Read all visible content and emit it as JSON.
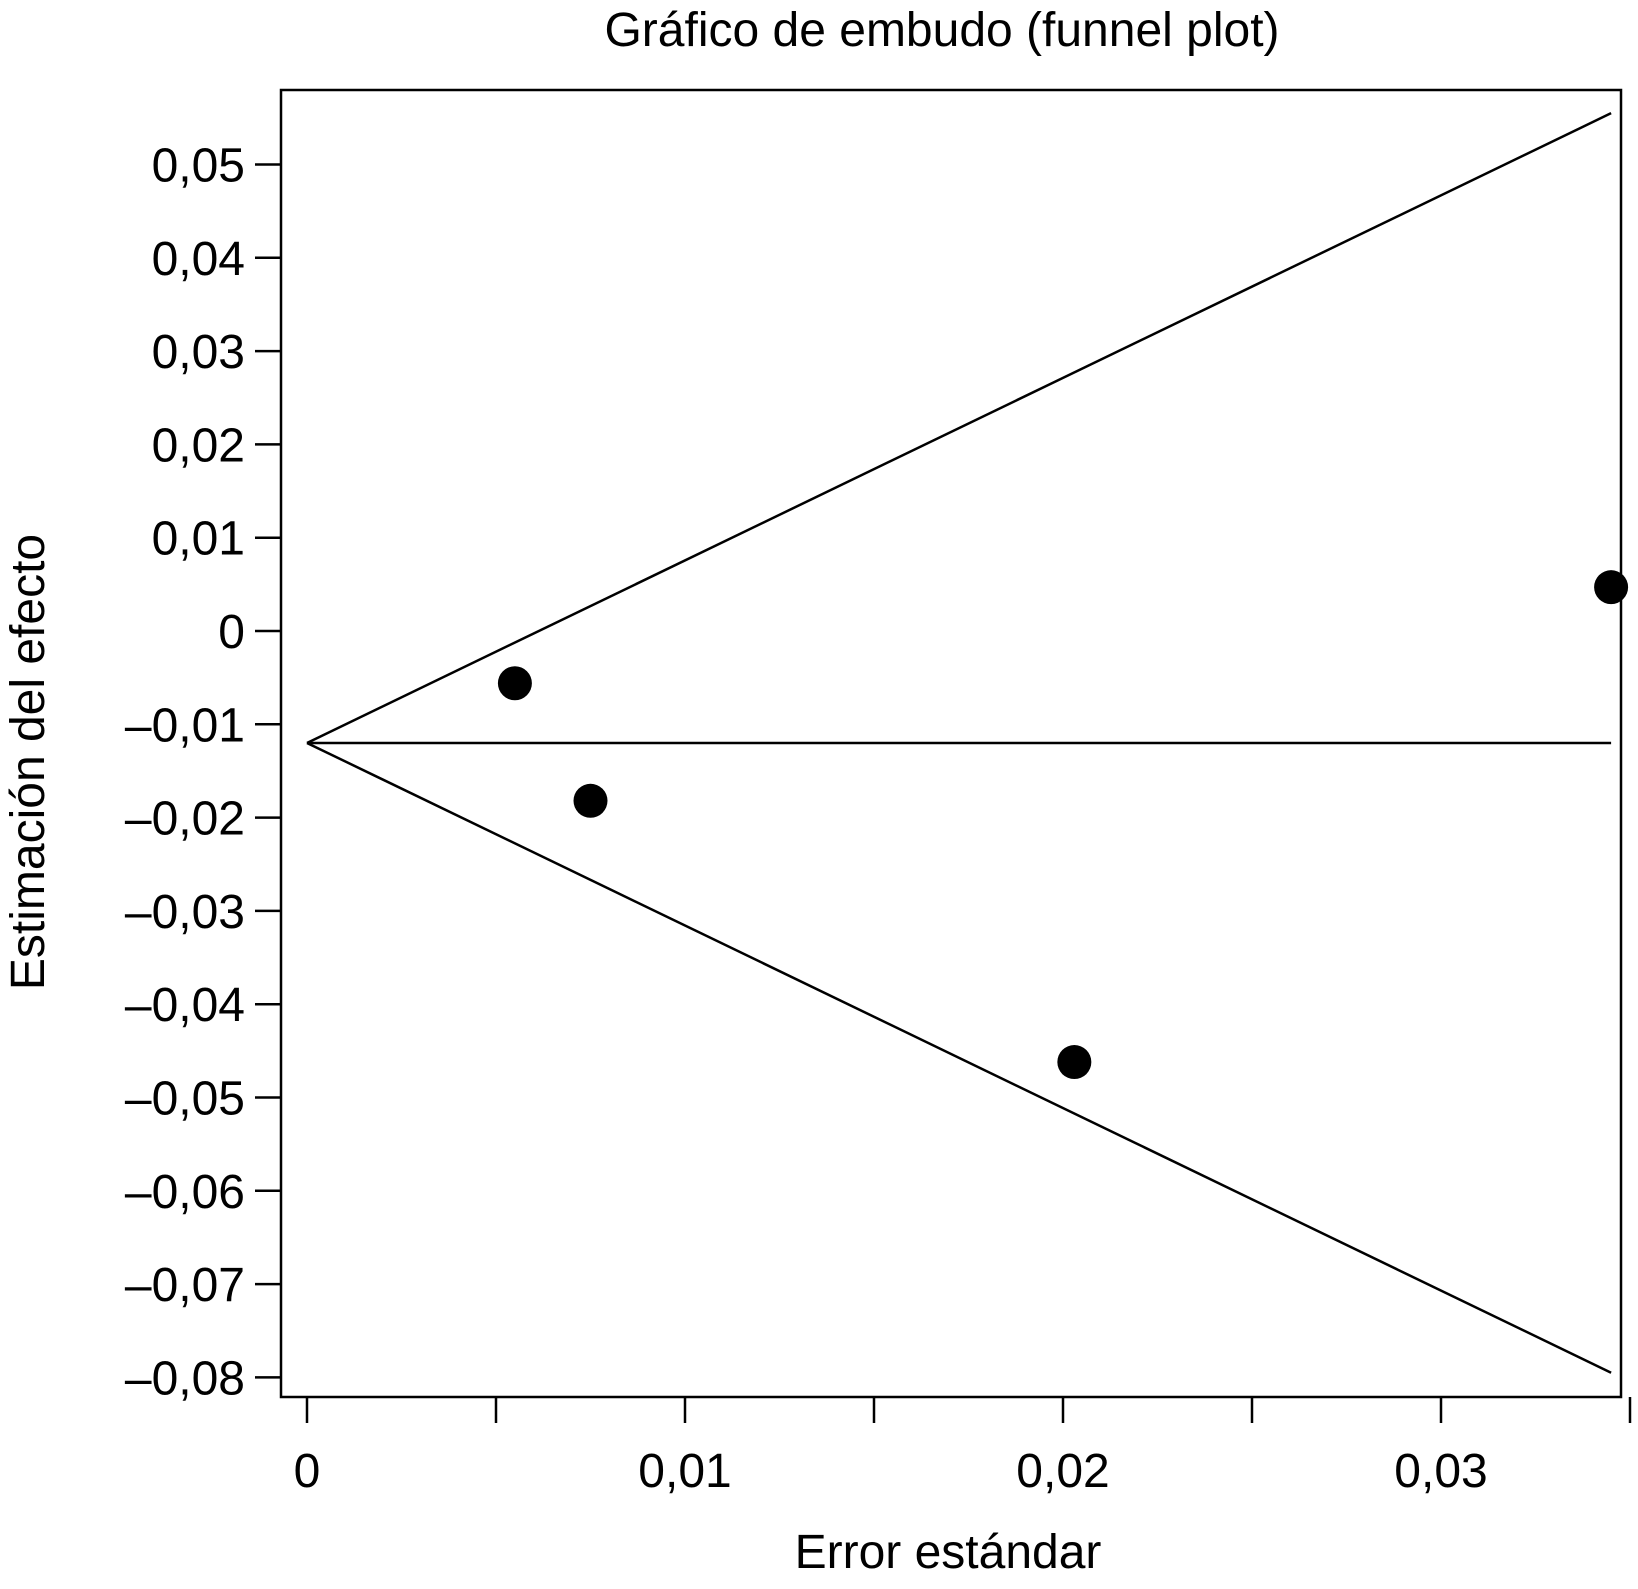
{
  "chart_data": {
    "type": "scatter",
    "title": "Gráfico de embudo (funnel plot)",
    "xlabel": "Error estándar",
    "ylabel": "Estimación del efecto",
    "xlim": [
      0,
      0.035
    ],
    "ylim": [
      -0.08,
      0.05
    ],
    "x_ticks": [
      {
        "value": 0,
        "label": "0"
      },
      {
        "value": 0.005,
        "label": ""
      },
      {
        "value": 0.01,
        "label": "0,01"
      },
      {
        "value": 0.015,
        "label": ""
      },
      {
        "value": 0.02,
        "label": "0,02"
      },
      {
        "value": 0.025,
        "label": ""
      },
      {
        "value": 0.03,
        "label": "0,03"
      },
      {
        "value": 0.035,
        "label": ""
      }
    ],
    "y_ticks": [
      {
        "value": 0.05,
        "label": "0,05"
      },
      {
        "value": 0.04,
        "label": "0,04"
      },
      {
        "value": 0.03,
        "label": "0,03"
      },
      {
        "value": 0.02,
        "label": "0,02"
      },
      {
        "value": 0.01,
        "label": "0,01"
      },
      {
        "value": 0,
        "label": "0"
      },
      {
        "value": -0.01,
        "label": "–0,01"
      },
      {
        "value": -0.02,
        "label": "–0,02"
      },
      {
        "value": -0.03,
        "label": "–0,03"
      },
      {
        "value": -0.04,
        "label": "–0,04"
      },
      {
        "value": -0.05,
        "label": "–0,05"
      },
      {
        "value": -0.06,
        "label": "–0,06"
      },
      {
        "value": -0.07,
        "label": "–0,07"
      },
      {
        "value": -0.08,
        "label": "–0,08"
      }
    ],
    "points": [
      {
        "x": 0.0055,
        "y": -0.0056
      },
      {
        "x": 0.0075,
        "y": -0.0182
      },
      {
        "x": 0.0203,
        "y": -0.0462
      },
      {
        "x": 0.0345,
        "y": 0.0047
      }
    ],
    "funnel": {
      "apex": {
        "x": 0,
        "y": -0.012
      },
      "upper_end": {
        "x": 0.0345,
        "y": 0.0555
      },
      "lower_end": {
        "x": 0.0345,
        "y": -0.0795
      },
      "center_line_y": -0.012
    },
    "grid": false,
    "legend": "none",
    "colors": {
      "ink": "#000000",
      "background": "#ffffff"
    }
  }
}
